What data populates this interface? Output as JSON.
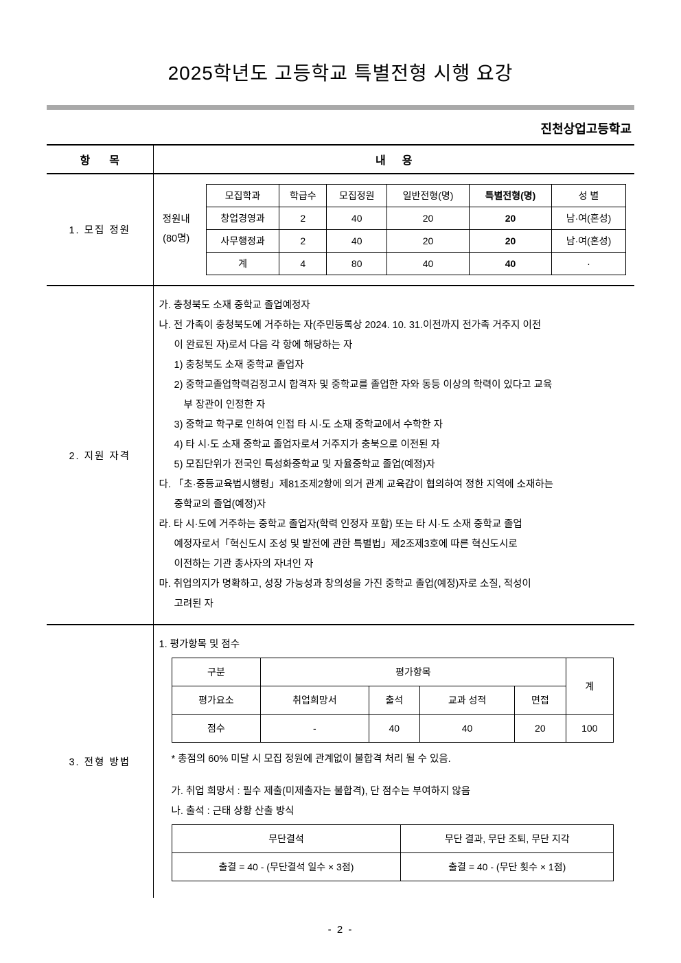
{
  "title": "2025학년도 고등학교 특별전형 시행 요강",
  "school": "진천상업고등학교",
  "header": {
    "col1": "항목",
    "col2": "내용"
  },
  "section1": {
    "label": "1. 모집 정원",
    "caplabel_line1": "정원내",
    "caplabel_line2": "(80명)",
    "cols": [
      "모집학과",
      "학급수",
      "모집정원",
      "일반전형(명)",
      "특별전형(명)",
      "성   별"
    ],
    "rows": [
      [
        "창업경영과",
        "2",
        "40",
        "20",
        "20",
        "남·여(혼성)"
      ],
      [
        "사무행정과",
        "2",
        "40",
        "20",
        "20",
        "남·여(혼성)"
      ],
      [
        "계",
        "4",
        "80",
        "40",
        "40",
        "·"
      ]
    ]
  },
  "section2": {
    "label": "2. 지원 자격",
    "lines": [
      {
        "cls": "i1",
        "t": "가. 충청북도 소재 중학교 졸업예정자"
      },
      {
        "cls": "i1",
        "t": "나. 전 가족이 충청북도에 거주하는 자(주민등록상 2024. 10. 31.이전까지 전가족 거주지 이전"
      },
      {
        "cls": "i2",
        "t": "이 완료된 자)로서 다음 각 항에 해당하는 자"
      },
      {
        "cls": "i2",
        "t": "1) 충청북도 소재 중학교 졸업자"
      },
      {
        "cls": "i2",
        "t": "2) 중학교졸업학력검정고시 합격자 및 중학교를 졸업한 자와 동등 이상의 학력이 있다고 교육"
      },
      {
        "cls": "i3",
        "t": "부 장관이 인정한 자"
      },
      {
        "cls": "i2",
        "t": "3) 중학교 학구로 인하여 인접 타 시·도 소재 중학교에서 수학한 자"
      },
      {
        "cls": "i2",
        "t": "4) 타 시·도 소재 중학교 졸업자로서 거주지가 충북으로 이전된 자"
      },
      {
        "cls": "i2",
        "t": "5) 모집단위가 전국인 특성화중학교 및 자율중학교 졸업(예정)자"
      },
      {
        "cls": "i1",
        "t": "다. 「초·중등교육법시행령」제81조제2항에 의거 관계 교육감이 협의하여 정한 지역에 소재하는"
      },
      {
        "cls": "i2",
        "t": "중학교의 졸업(예정)자"
      },
      {
        "cls": "i1",
        "t": "라. 타 시·도에 거주하는 중학교 졸업자(학력 인정자 포함) 또는 타 시·도 소재 중학교 졸업"
      },
      {
        "cls": "i2",
        "t": "예정자로서「혁신도시 조성 및 발전에 관한 특별법」제2조제3호에 따른 혁신도시로"
      },
      {
        "cls": "i2",
        "t": "이전하는 기관 종사자의 자녀인 자"
      },
      {
        "cls": "i1",
        "t": "마. 취업의지가 명확하고, 성장 가능성과 창의성을 가진 중학교 졸업(예정)자로 소질, 적성이"
      },
      {
        "cls": "i2",
        "t": "고려된 자"
      }
    ]
  },
  "section3": {
    "label": "3. 전형 방법",
    "heading": "1. 평가항목 및 점수",
    "eval": {
      "row1c1": "구분",
      "row1c2": "평가항목",
      "row1c3": "계",
      "row2": [
        "평가요소",
        "취업희망서",
        "출석",
        "교과 성적",
        "면접"
      ],
      "row3": [
        "점수",
        "-",
        "40",
        "40",
        "20",
        "100"
      ]
    },
    "note": "* 총점의 60% 미달 시 모집 정원에 관계없이 불합격 처리 될 수 있음.",
    "line_a": "가. 취업 희망서 : 필수 제출(미제출자는 불합격), 단 점수는 부여하지 않음",
    "line_b": "나. 출석 : 근태 상황 산출 방식",
    "att": {
      "h1": "무단결석",
      "h2": "무단 결과, 무단 조퇴, 무단 지각",
      "f1": "출결  =  40 - (무단결석 일수 × 3점)",
      "f2": "출결 = 40 - (무단 횟수 × 1점)"
    }
  },
  "pagenum": "- 2 -",
  "colors": {
    "divider": "#a9a9a9",
    "text": "#000000",
    "bg": "#ffffff"
  }
}
